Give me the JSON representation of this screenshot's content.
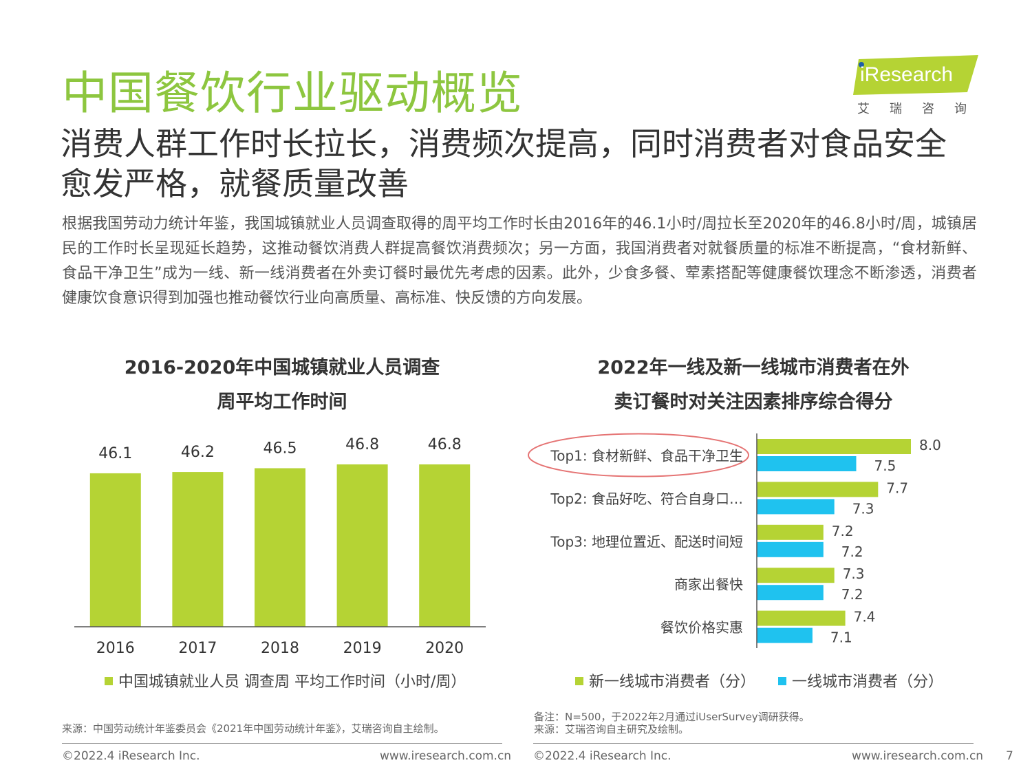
{
  "page": {
    "title": "中国餐饮行业驱动概览",
    "subtitle": "消费人群工作时长拉长，消费频次提高，同时消费者对食品安全愈发严格，就餐质量改善",
    "body": "根据我国劳动力统计年鉴，我国城镇就业人员调查取得的周平均工作时长由2016年的46.1小时/周拉长至2020年的46.8小时/周，城镇居民的工作时长呈现延长趋势，这推动餐饮消费人群提高餐饮消费频次；另一方面，我国消费者对就餐质量的标准不断提高，“食材新鲜、食品干净卫生”成为一线、新一线消费者在外卖订餐时最优先考虑的因素。此外，少食多餐、荤素搭配等健康餐饮理念不断渗透，消费者健康饮食意识得到加强也推动餐饮行业向高质量、高标准、快反馈的方向发展。"
  },
  "logo": {
    "brand": "iResearch",
    "sub": "艾瑞咨询",
    "color": "#b5d334"
  },
  "colors": {
    "title_green": "#8dc63f",
    "bar_green": "#b5d334",
    "bar_blue": "#1fc2ef",
    "highlight_circle": "#e57373"
  },
  "chart1": {
    "title_line1": "2016-2020年中国城镇就业人员调查",
    "title_line2": "周平均工作时间",
    "legend": "中国城镇就业人员 调查周 平均工作时间（小时/周）",
    "source": "来源：中国劳动统计年鉴委员会《2021年中国劳动统计年鉴》，艾瑞咨询自主绘制。"
  },
  "chart2": {
    "title_line1": "2022年一线及新一线城市消费者在外",
    "title_line2": "卖订餐时对关注因素排序综合得分",
    "legend_a": "新一线城市消费者（分）",
    "legend_b": "一线城市消费者（分）",
    "note1": "备注：N=500，于2022年2月通过iUserSurvey调研获得。",
    "note2": "来源：艾瑞咨询自主研究及绘制。"
  },
  "footer": {
    "copyright_left": "©2022.4 iResearch Inc.",
    "url_left": "www.iresearch.com.cn",
    "copyright_right": "©2022.4 iResearch Inc.",
    "url_right": "www.iresearch.com.cn",
    "page_number": "7"
  },
  "chart_data": [
    {
      "type": "bar",
      "title": "2016-2020年中国城镇就业人员调查周平均工作时间",
      "categories": [
        "2016",
        "2017",
        "2018",
        "2019",
        "2020"
      ],
      "values": [
        46.1,
        46.2,
        46.5,
        46.8,
        46.8
      ],
      "labels": [
        "46.1",
        "46.2",
        "46.5",
        "46.8",
        "46.8"
      ],
      "series_name": "中国城镇就业人员 调查周 平均工作时间（小时/周）",
      "legend_position": "bottom",
      "grid": false
    },
    {
      "type": "bar",
      "orientation": "horizontal",
      "title": "2022年一线及新一线城市消费者在外卖订餐时对关注因素排序综合得分",
      "categories": [
        "Top1: 食材新鲜、食品干净卫生",
        "Top2: 食品好吃、符合自身口…",
        "Top3: 地理位置近、配送时间短",
        "商家出餐快",
        "餐饮价格实惠"
      ],
      "series": [
        {
          "name": "新一线城市消费者（分）",
          "values": [
            8.0,
            7.7,
            7.2,
            7.3,
            7.4
          ],
          "labels": [
            "8.0",
            "7.7",
            "7.2",
            "7.3",
            "7.4"
          ],
          "color": "#b5d334"
        },
        {
          "name": "一线城市消费者（分）",
          "values": [
            7.5,
            7.3,
            7.2,
            7.2,
            7.1
          ],
          "labels": [
            "7.5",
            "7.3",
            "7.2",
            "7.2",
            "7.1"
          ],
          "color": "#1fc2ef"
        }
      ],
      "highlighted_category": "Top1: 食材新鲜、食品干净卫生",
      "legend_position": "bottom",
      "grid": false
    }
  ]
}
